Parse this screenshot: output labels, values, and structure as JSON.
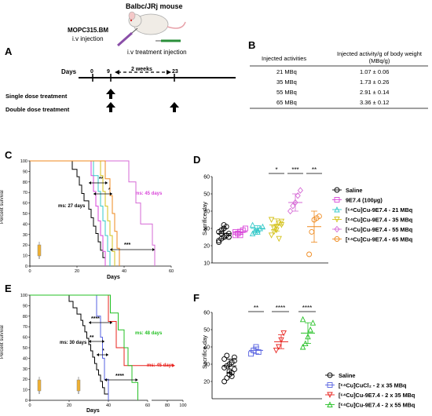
{
  "panels": {
    "A": "A",
    "B": "B",
    "C": "C",
    "D": "D",
    "E": "E",
    "F": "F"
  },
  "schema": {
    "mouse_label": "Balbc/JRj mouse",
    "mopc_line1": "MOPC315.BM",
    "mopc_line2": "i.v injection",
    "treat_label": "i.v treatment injection",
    "days_label": "Days",
    "day_ticks": [
      "0",
      "9",
      "23"
    ],
    "interval_label": "2 weeks",
    "single_dose": "Single dose treatment",
    "double_dose": "Double dose treatment"
  },
  "table_B": {
    "headers": [
      "Injected activities",
      "Injected activity/g of body weight (MBq/g)"
    ],
    "rows": [
      [
        "21 MBq",
        "1.07 ± 0.06"
      ],
      [
        "35 MBq",
        "1.73 ± 0.26"
      ],
      [
        "55 MBq",
        "2.91 ± 0.14"
      ],
      [
        "65 MBq",
        "3.36 ± 0.12"
      ]
    ]
  },
  "panel_C": {
    "ylabel": "Percent survival",
    "xlabel": "Days",
    "yticks": [
      "0",
      "10",
      "20",
      "30",
      "40",
      "50",
      "60",
      "70",
      "80",
      "90",
      "100"
    ],
    "xticks": [
      "0",
      "20",
      "40",
      "60"
    ],
    "ann_ms45": "ms: 45 days",
    "ann_ms27": "ms: 27 days",
    "sig": [
      "**",
      "*",
      "***"
    ]
  },
  "panel_D": {
    "ylabel": "Sacrifice day",
    "yticks": [
      "10",
      "20",
      "30",
      "40",
      "50",
      "60"
    ],
    "sig": [
      "*",
      "***",
      "**"
    ],
    "legend": [
      "Saline",
      "9E7.4 (100µg)",
      "[⁶⁴Cu]Cu-9E7.4 - 21 MBq",
      "[⁶⁴Cu]Cu-9E7.4 - 35 MBq",
      "[⁶⁴Cu]Cu-9E7.4 - 55 MBq",
      "[⁶⁴Cu]Cu-9E7.4 - 65 MBq"
    ]
  },
  "panel_E": {
    "ylabel": "Percent survival",
    "xlabel": "Days",
    "yticks": [
      "0",
      "10",
      "20",
      "30",
      "40",
      "50",
      "60",
      "70",
      "80",
      "90",
      "100"
    ],
    "xticks": [
      "0",
      "20",
      "40",
      "60",
      "80",
      "100"
    ],
    "ann_ms48": "ms: 48 days",
    "ann_ms45": "ms: 45 days",
    "ann_ms30": "ms: 30 days",
    "sig": [
      "****",
      "**",
      "*",
      "****"
    ]
  },
  "panel_F": {
    "ylabel": "Sacrifice day",
    "yticks": [
      "20",
      "30",
      "40",
      "50",
      "60"
    ],
    "sig": [
      "**",
      "****",
      "****"
    ],
    "legend": [
      "Saline",
      "[⁶⁴Cu]CuCl₂ - 2 x 35 MBq",
      "[⁶⁴Cu]Cu-9E7.4 - 2 x 35 MBq",
      "[⁶⁴Cu]Cu-9E7.4 - 2 x 55 MBq"
    ]
  },
  "colors": {
    "saline": "#000000",
    "antibody": "#d946d9",
    "mbq21": "#35c9c9",
    "mbq35": "#d4c21a",
    "mbq55": "#d66ad6",
    "mbq65": "#ef8a1e",
    "cucl2": "#5560e0",
    "x2_35": "#e8231e",
    "x2_55": "#25c025"
  }
}
